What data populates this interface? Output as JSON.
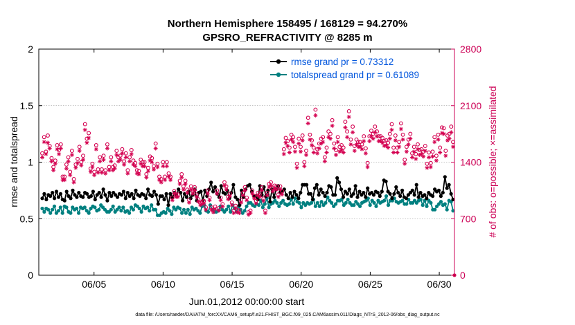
{
  "chart_data": {
    "type": "line",
    "title": "Northern Hemisphere 158495 / 168129 = 94.270%",
    "subtitle": "GPSRO_REFRACTIVITY @ 8285 m",
    "xlabel": "Jun.01,2012 00:00:00 start",
    "ylabel": "rmse and totalspread",
    "y2label": "# of obs: o=possible; ×=assimilated",
    "footer": "data file: /Users/raeder/DAI/ATM_forcXX/CAM6_setup/f.e21.FHIST_BGC.f09_025.CAM6assim.011/Diags_NTrS_2012-06/obs_diag_output.nc",
    "xlim": [
      1,
      31.1
    ],
    "ylim": [
      0,
      2
    ],
    "y2lim": [
      0,
      2800
    ],
    "xticks": [
      5,
      10,
      15,
      20,
      25,
      30
    ],
    "xtick_labels": [
      "06/05",
      "06/10",
      "06/15",
      "06/20",
      "06/25",
      "06/30"
    ],
    "yticks": [
      0,
      0.5,
      1,
      1.5,
      2
    ],
    "ytick_labels": [
      "0",
      "0.5",
      "1",
      "1.5",
      "2"
    ],
    "y2ticks": [
      0,
      700,
      1400,
      2100,
      2800
    ],
    "y2tick_labels": [
      "0",
      "700",
      "1400",
      "2100",
      "2800"
    ],
    "grid": "y-dashed",
    "legend_position": "top-right",
    "colors": {
      "rmse": "#000000",
      "spread": "#008080",
      "obs": "#d40050",
      "legend_text": "#0055dd",
      "right_axis": "#cc0055"
    },
    "series": [
      {
        "name": "rmse grand pr = 0.73312",
        "axis": "left",
        "style": "line-dot",
        "color": "#000000",
        "values": [
          0.68,
          0.72,
          0.67,
          0.71,
          0.7,
          0.73,
          0.68,
          0.74,
          0.69,
          0.72,
          0.67,
          0.66,
          0.74,
          0.7,
          0.68,
          0.75,
          0.71,
          0.69,
          0.73,
          0.7,
          0.69,
          0.73,
          0.72,
          0.69,
          0.7,
          0.74,
          0.67,
          0.71,
          0.73,
          0.69,
          0.76,
          0.71,
          0.66,
          0.73,
          0.7,
          0.73,
          0.71,
          0.69,
          0.72,
          0.71,
          0.74,
          0.68,
          0.73,
          0.7,
          0.72,
          0.68,
          0.75,
          0.71,
          0.7,
          0.72,
          0.71,
          0.68,
          0.76,
          0.71,
          0.7,
          0.74,
          0.71,
          0.63,
          0.7,
          0.7,
          0.67,
          0.72,
          0.62,
          0.72,
          0.69,
          0.73,
          0.7,
          0.76,
          0.73,
          0.66,
          0.72,
          0.69,
          0.74,
          0.68,
          0.71,
          0.76,
          0.66,
          0.73,
          0.74,
          0.66,
          0.75,
          0.7,
          0.76,
          0.82,
          0.74,
          0.78,
          0.72,
          0.69,
          0.79,
          0.73,
          0.72,
          0.75,
          0.68,
          0.73,
          0.8,
          0.69,
          0.67,
          0.62,
          0.75,
          0.69,
          0.76,
          0.79,
          0.8,
          0.74,
          0.7,
          0.7,
          0.67,
          0.79,
          0.71,
          0.78,
          0.7,
          0.75,
          0.65,
          0.76,
          0.69,
          0.76,
          0.79,
          0.73,
          0.74,
          0.76,
          0.71,
          0.68,
          0.73,
          0.69,
          0.74,
          0.71,
          0.68,
          0.73,
          0.8,
          0.8,
          0.8,
          0.72,
          0.72,
          0.67,
          0.77,
          0.8,
          0.71,
          0.76,
          0.73,
          0.7,
          0.73,
          0.79,
          0.78,
          0.71,
          0.71,
          0.86,
          0.82,
          0.76,
          0.69,
          0.74,
          0.72,
          0.76,
          0.7,
          0.72,
          0.79,
          0.69,
          0.74,
          0.71,
          0.73,
          0.69,
          0.77,
          0.72,
          0.73,
          0.71,
          0.74,
          0.73,
          0.7,
          0.74,
          0.84,
          0.83,
          0.74,
          0.72,
          0.68,
          0.72,
          0.78,
          0.73,
          0.7,
          0.75,
          0.69,
          0.68,
          0.71,
          0.73,
          0.75,
          0.71,
          0.8,
          0.69,
          0.73,
          0.7,
          0.71,
          0.68,
          0.73,
          0.71,
          0.7,
          0.76,
          0.74,
          0.75,
          0.7,
          0.73,
          0.87,
          0.77,
          0.8,
          0.72,
          0.67
        ]
      },
      {
        "name": "totalspread grand pr = 0.61089",
        "axis": "left",
        "style": "line-dot",
        "color": "#008080",
        "values": [
          0.59,
          0.56,
          0.59,
          0.58,
          0.55,
          0.58,
          0.61,
          0.55,
          0.57,
          0.6,
          0.55,
          0.61,
          0.6,
          0.56,
          0.55,
          0.6,
          0.58,
          0.59,
          0.55,
          0.6,
          0.59,
          0.6,
          0.57,
          0.55,
          0.59,
          0.61,
          0.6,
          0.57,
          0.58,
          0.62,
          0.6,
          0.58,
          0.56,
          0.56,
          0.58,
          0.61,
          0.56,
          0.58,
          0.6,
          0.57,
          0.6,
          0.56,
          0.57,
          0.55,
          0.6,
          0.58,
          0.62,
          0.61,
          0.59,
          0.56,
          0.61,
          0.59,
          0.6,
          0.57,
          0.62,
          0.58,
          0.58,
          0.53,
          0.53,
          0.55,
          0.56,
          0.55,
          0.59,
          0.57,
          0.54,
          0.6,
          0.58,
          0.6,
          0.59,
          0.55,
          0.58,
          0.55,
          0.58,
          0.54,
          0.6,
          0.58,
          0.59,
          0.57,
          0.55,
          0.61,
          0.62,
          0.57,
          0.56,
          0.62,
          0.58,
          0.56,
          0.56,
          0.57,
          0.61,
          0.58,
          0.56,
          0.58,
          0.61,
          0.56,
          0.62,
          0.59,
          0.56,
          0.61,
          0.58,
          0.55,
          0.57,
          0.61,
          0.64,
          0.64,
          0.62,
          0.61,
          0.63,
          0.62,
          0.66,
          0.6,
          0.63,
          0.68,
          0.6,
          0.63,
          0.64,
          0.66,
          0.64,
          0.61,
          0.64,
          0.66,
          0.63,
          0.62,
          0.63,
          0.67,
          0.63,
          0.68,
          0.65,
          0.64,
          0.6,
          0.64,
          0.62,
          0.64,
          0.63,
          0.64,
          0.67,
          0.61,
          0.64,
          0.61,
          0.65,
          0.62,
          0.64,
          0.69,
          0.66,
          0.64,
          0.61,
          0.63,
          0.66,
          0.66,
          0.67,
          0.62,
          0.64,
          0.67,
          0.64,
          0.62,
          0.62,
          0.65,
          0.63,
          0.61,
          0.64,
          0.65,
          0.66,
          0.68,
          0.62,
          0.66,
          0.64,
          0.61,
          0.66,
          0.64,
          0.65,
          0.66,
          0.7,
          0.62,
          0.66,
          0.66,
          0.68,
          0.65,
          0.64,
          0.65,
          0.66,
          0.63,
          0.63,
          0.67,
          0.64,
          0.64,
          0.66,
          0.64,
          0.66,
          0.67,
          0.62,
          0.66,
          0.61,
          0.66,
          0.64,
          0.58,
          0.58,
          0.61,
          0.63,
          0.65,
          0.62,
          0.63,
          0.58,
          0.66,
          0.65,
          0.57
        ]
      },
      {
        "name": "possible",
        "axis": "right",
        "style": "circle",
        "color": "#d40050",
        "values": [
          1510,
          1710,
          1530,
          1730,
          1600,
          1450,
          1340,
          1420,
          1610,
          1550,
          1620,
          1220,
          1220,
          1370,
          1460,
          1280,
          1540,
          1190,
          1370,
          1440,
          1590,
          1400,
          1480,
          1870,
          1690,
          1760,
          1320,
          1380,
          1280,
          1610,
          1310,
          1460,
          1310,
          1480,
          1300,
          1620,
          1340,
          1460,
          1340,
          1360,
          1540,
          1460,
          1480,
          1560,
          1410,
          1510,
          1300,
          1460,
          1550,
          1420,
          1390,
          1300,
          1290,
          1430,
          1400,
          1400,
          1250,
          1330,
          1470,
          1450,
          1350,
          1630,
          1380,
          1220,
          1190,
          1400,
          1220,
          1400,
          1260,
          1220,
          960,
          1040,
          1000,
          1000,
          1170,
          1250,
          1100,
          1170,
          1060,
          930,
          1100,
          1050,
          1090,
          1000,
          940,
          900,
          910,
          920,
          840,
          1050,
          960,
          840,
          810,
          850,
          1050,
          830,
          960,
          880,
          1150,
          1100,
          970,
          1010,
          900,
          800,
          860,
          810,
          800,
          930,
          1020,
          1090,
          960,
          780,
          800,
          1050,
          980,
          920,
          1020,
          1000,
          1090,
          950,
          800,
          1020,
          1130,
          1150,
          1080,
          1110,
          1100,
          1000,
          1100,
          1040,
          1560,
          1700,
          1660,
          1580,
          1740,
          1710,
          1590,
          1380,
          1690,
          1590,
          1730,
          1400,
          1540,
          1950,
          1740,
          1670,
          1580,
          2050,
          1560,
          1630,
          1690,
          1710,
          1460,
          1580,
          1780,
          1750,
          1920,
          1630,
          1550,
          1710,
          1590,
          1610,
          1580,
          1900,
          1780,
          2030,
          1680,
          1840,
          1600,
          1680,
          1650,
          1650,
          1620,
          1720,
          1570,
          1390,
          1720,
          1790,
          1750,
          1840,
          1780,
          1720,
          1720,
          1700,
          1660,
          1670,
          1640,
          1750,
          1870,
          1580,
          1730,
          1580,
          1650,
          1880,
          1740,
          1430,
          1590,
          1680,
          1750,
          1510,
          1590,
          1500,
          1620,
          1550,
          1560,
          1530,
          1600,
          1380,
          1520,
          1390,
          1530,
          1710,
          1480,
          1740,
          1580,
          1830,
          1820,
          1540,
          1730,
          1750,
          1840,
          1650
        ]
      },
      {
        "name": "assimilated",
        "axis": "right",
        "style": "star",
        "color": "#d40050",
        "values": [
          1460,
          1650,
          1500,
          1640,
          1570,
          1410,
          1300,
          1380,
          1560,
          1500,
          1570,
          1180,
          1180,
          1320,
          1410,
          1240,
          1490,
          1150,
          1330,
          1390,
          1540,
          1360,
          1430,
          1800,
          1640,
          1700,
          1280,
          1340,
          1240,
          1560,
          1270,
          1410,
          1270,
          1430,
          1260,
          1570,
          1300,
          1410,
          1300,
          1320,
          1490,
          1410,
          1430,
          1510,
          1370,
          1460,
          1260,
          1410,
          1500,
          1370,
          1350,
          1260,
          1250,
          1380,
          1350,
          1350,
          1210,
          1290,
          1420,
          1400,
          1310,
          1570,
          1340,
          1180,
          1150,
          1350,
          1180,
          1350,
          1220,
          1180,
          930,
          1010,
          970,
          970,
          1130,
          1210,
          1060,
          1130,
          1020,
          900,
          1060,
          1010,
          1050,
          970,
          910,
          870,
          880,
          890,
          810,
          1010,
          930,
          810,
          780,
          820,
          1010,
          800,
          930,
          850,
          1110,
          1060,
          940,
          980,
          870,
          770,
          830,
          780,
          770,
          900,
          990,
          1050,
          930,
          750,
          770,
          1010,
          950,
          890,
          990,
          970,
          1050,
          920,
          770,
          990,
          1090,
          1110,
          1040,
          1070,
          1060,
          970,
          1060,
          1000,
          1500,
          1640,
          1600,
          1520,
          1680,
          1650,
          1530,
          1330,
          1630,
          1530,
          1670,
          1350,
          1490,
          1880,
          1680,
          1610,
          1520,
          1980,
          1510,
          1570,
          1630,
          1650,
          1410,
          1520,
          1710,
          1690,
          1850,
          1570,
          1490,
          1650,
          1530,
          1550,
          1520,
          1830,
          1710,
          1960,
          1620,
          1770,
          1540,
          1620,
          1590,
          1590,
          1560,
          1660,
          1510,
          1340,
          1660,
          1720,
          1690,
          1770,
          1720,
          1660,
          1660,
          1640,
          1600,
          1610,
          1580,
          1690,
          1800,
          1520,
          1670,
          1520,
          1590,
          1810,
          1680,
          1380,
          1530,
          1620,
          1690,
          1460,
          1530,
          1440,
          1560,
          1490,
          1500,
          1470,
          1540,
          1330,
          1460,
          1340,
          1470,
          1650,
          1420,
          1680,
          1520,
          1760,
          1750,
          1480,
          1670,
          1690,
          1770,
          1590
        ]
      }
    ],
    "legend": {
      "rmse": "rmse grand pr = 0.73312",
      "spread": "totalspread grand pr = 0.61089"
    }
  }
}
